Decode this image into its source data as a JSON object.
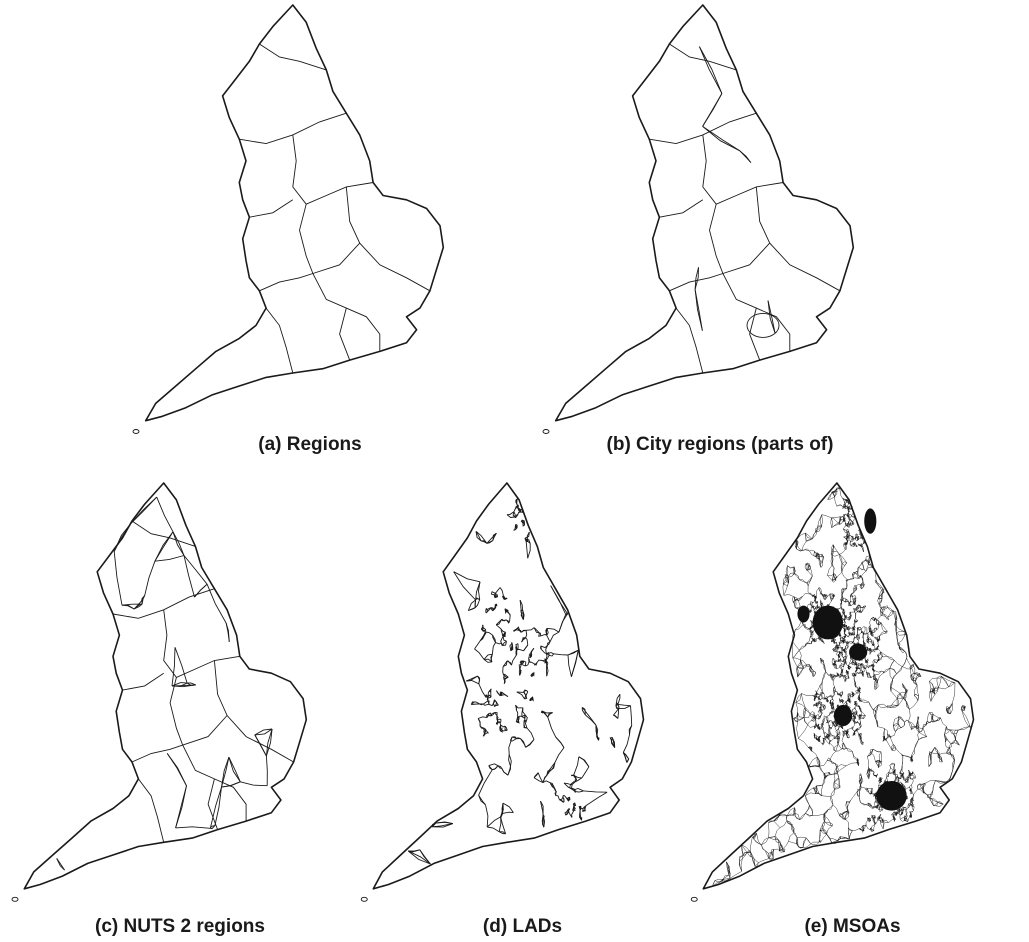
{
  "figure": {
    "panels": [
      {
        "caption": "(a) Regions"
      },
      {
        "caption": "(b) City regions (parts of)"
      },
      {
        "caption": "(c) NUTS 2 regions"
      },
      {
        "caption": "(d) LADs"
      },
      {
        "caption": "(e) MSOAs"
      }
    ]
  },
  "colors": {
    "outline": "#1a1a1a",
    "background": "#ffffff"
  }
}
